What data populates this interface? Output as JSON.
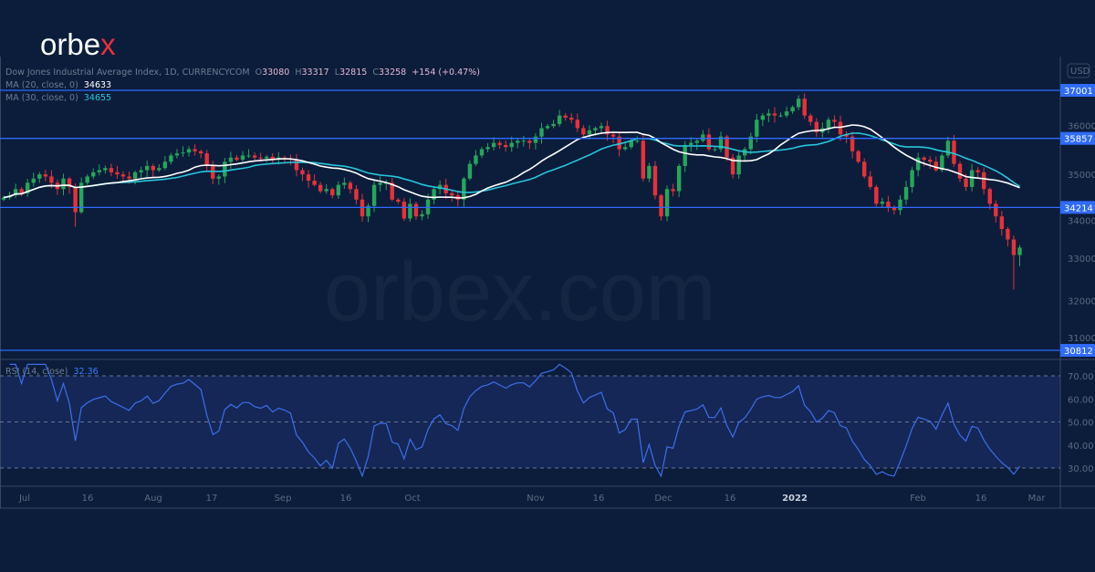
{
  "logo": {
    "text_main": "orbe",
    "text_accent": "x"
  },
  "watermark": "orbex.com",
  "header": {
    "symbol": "Dow Jones Industrial Average Index, 1D, CURRENCYCOM",
    "o_label": "O",
    "open": "33080",
    "h_label": "H",
    "high": "33317",
    "l_label": "L",
    "low": "32815",
    "c_label": "C",
    "close": "33258",
    "change": "+154 (+0.47%)",
    "ma20_label": "MA (20, close, 0)",
    "ma20_value": "34633",
    "ma30_label": "MA (30, close, 0)",
    "ma30_value": "34655",
    "rsi_label": "RSI (14, close)",
    "rsi_value": "32.36"
  },
  "currency": "USD",
  "colors": {
    "up": "#26a65b",
    "down": "#e8313a",
    "ma20": "#ffffff",
    "ma30": "#26c6da",
    "level": "#2f6bff",
    "rsi": "#3d6fe8",
    "background": "#0b1d3b"
  },
  "chart_data": [
    {
      "type": "candlestick",
      "title": "Dow Jones Industrial Average Index, 1D, CURRENCYCOM",
      "ylabel": "USD",
      "ylim": [
        30700,
        37100
      ],
      "y_ticks": [
        "36000",
        "35000",
        "34000",
        "33000",
        "32000",
        "31000"
      ],
      "x_ticks": [
        "Jul",
        "16",
        "Aug",
        "17",
        "Sep",
        "16",
        "Oct",
        "Nov",
        "16",
        "Dec",
        "16",
        "2022",
        "Feb",
        "16",
        "Mar"
      ],
      "levels": [
        "37001",
        "35857",
        "34214",
        "30812"
      ],
      "first_open": 34400,
      "closes": [
        34450,
        34500,
        34650,
        34550,
        34800,
        34900,
        35000,
        34950,
        34800,
        34650,
        34900,
        34700,
        34100,
        34800,
        34950,
        35050,
        35100,
        35150,
        35050,
        35000,
        34950,
        34900,
        35050,
        35100,
        35200,
        35100,
        35150,
        35300,
        35450,
        35500,
        35520,
        35600,
        35550,
        35500,
        35200,
        34900,
        34950,
        35300,
        35400,
        35350,
        35450,
        35450,
        35400,
        35380,
        35420,
        35350,
        35400,
        35380,
        35350,
        35100,
        35000,
        34850,
        34750,
        34600,
        34650,
        34500,
        34750,
        34800,
        34650,
        34400,
        34000,
        34250,
        34750,
        34800,
        34800,
        34400,
        34350,
        33950,
        34300,
        34000,
        34050,
        34400,
        34650,
        34750,
        34550,
        34500,
        34400,
        34900,
        35250,
        35450,
        35600,
        35650,
        35750,
        35700,
        35650,
        35750,
        35800,
        35800,
        35750,
        35900,
        36100,
        36150,
        36200,
        36400,
        36350,
        36300,
        36100,
        35950,
        36050,
        36100,
        36150,
        35950,
        35900,
        35600,
        35650,
        35800,
        35800,
        34900,
        35200,
        34500,
        34000,
        34650,
        34600,
        35200,
        35700,
        35750,
        35800,
        35950,
        35600,
        35600,
        35900,
        35400,
        35000,
        35450,
        35600,
        35900,
        36300,
        36400,
        36450,
        36400,
        36400,
        36500,
        36600,
        36800,
        36400,
        36250,
        36000,
        36100,
        36300,
        36250,
        35950,
        35900,
        35550,
        35300,
        34950,
        34700,
        34300,
        34350,
        34200,
        34150,
        34400,
        34700,
        35100,
        35400,
        35350,
        35300,
        35100,
        35450,
        35800,
        35250,
        34900,
        34700,
        35100,
        35050,
        34650,
        34300,
        34000,
        33700,
        33450,
        33080,
        33258
      ],
      "last_candle": {
        "open": 33080,
        "high": 33317,
        "low": 32815,
        "close": 33258
      },
      "series": [
        {
          "name": "MA (20, close, 0)",
          "last": 34633
        },
        {
          "name": "MA (30, close, 0)",
          "last": 34655
        }
      ]
    },
    {
      "type": "line",
      "title": "RSI (14, close)",
      "ylim": [
        20,
        75
      ],
      "y_ticks": [
        "70.00",
        "60.00",
        "50.00",
        "40.00",
        "30.00"
      ],
      "band": [
        30,
        70
      ],
      "last": 32.36
    }
  ]
}
